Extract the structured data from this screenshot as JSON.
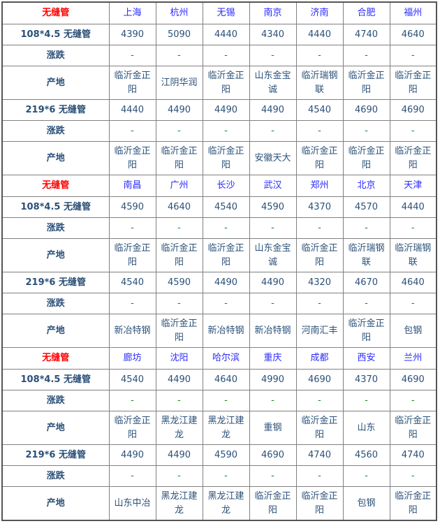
{
  "colors": {
    "title": "#ff0000",
    "city": "#2a2aff",
    "text": "#2b5078",
    "change": "#1a8a1a"
  },
  "labels": {
    "product": "无缝管",
    "change": "涨跌",
    "origin": "产地"
  },
  "blocks": [
    {
      "cities": [
        "上海",
        "杭州",
        "无锡",
        "南京",
        "济南",
        "合肥",
        "福州"
      ],
      "specs": [
        {
          "name": "108*4.5 无缝管",
          "prices": [
            "4390",
            "5090",
            "4440",
            "4340",
            "4440",
            "4740",
            "4640"
          ],
          "changes": [
            "-",
            "-",
            "-",
            "-",
            "-",
            "-",
            "-"
          ],
          "origins": [
            "临沂金正阳",
            "江阴华润",
            "临沂金正阳",
            "山东金宝诚",
            "临沂瑞钢联",
            "临沂金正阳",
            "临沂金正阳"
          ]
        },
        {
          "name": "219*6 无缝管",
          "prices": [
            "4440",
            "4490",
            "4490",
            "4490",
            "4540",
            "4690",
            "4690"
          ],
          "changes": [
            "-",
            "-",
            "-",
            "-",
            "-",
            "-",
            "-"
          ],
          "origins": [
            "临沂金正阳",
            "临沂金正阳",
            "临沂金正阳",
            "安徽天大",
            "临沂金正阳",
            "临沂金正阳",
            "临沂金正阳"
          ]
        }
      ]
    },
    {
      "cities": [
        "南昌",
        "广州",
        "长沙",
        "武汉",
        "郑州",
        "北京",
        "天津"
      ],
      "specs": [
        {
          "name": "108*4.5 无缝管",
          "prices": [
            "4590",
            "4640",
            "4540",
            "4590",
            "4370",
            "4570",
            "4440"
          ],
          "changes": [
            "-",
            "-",
            "-",
            "-",
            "-",
            "-",
            "-"
          ],
          "origins": [
            "临沂金正阳",
            "临沂金正阳",
            "临沂金正阳",
            "山东金宝诚",
            "临沂金正阳",
            "临沂瑞钢联",
            "临沂瑞钢联"
          ]
        },
        {
          "name": "219*6 无缝管",
          "prices": [
            "4540",
            "4590",
            "4490",
            "4490",
            "4320",
            "4670",
            "4640"
          ],
          "changes": [
            "-",
            "-",
            "-",
            "-",
            "-",
            "-",
            "-"
          ],
          "origins": [
            "新冶特钢",
            "临沂金正阳",
            "新冶特钢",
            "新冶特钢",
            "河南汇丰",
            "临沂金正阳",
            "包钢"
          ]
        }
      ]
    },
    {
      "cities": [
        "廊坊",
        "沈阳",
        "哈尔滨",
        "重庆",
        "成都",
        "西安",
        "兰州"
      ],
      "specs": [
        {
          "name": "108*4.5 无缝管",
          "prices": [
            "4540",
            "4490",
            "4640",
            "4990",
            "4690",
            "4370",
            "4690"
          ],
          "changes": [
            "-",
            "-",
            "-",
            "-",
            "-",
            "-",
            "-"
          ],
          "origins": [
            "临沂金正阳",
            "黑龙江建龙",
            "黑龙江建龙",
            "重钢",
            "临沂金正阳",
            "山东",
            "临沂金正阳"
          ]
        },
        {
          "name": "219*6 无缝管",
          "prices": [
            "4490",
            "4490",
            "4590",
            "4690",
            "4740",
            "4560",
            "4740"
          ],
          "changes": [
            "-",
            "-",
            "-",
            "-",
            "-",
            "-",
            "-"
          ],
          "origins": [
            "山东中冶",
            "黑龙江建龙",
            "黑龙江建龙",
            "临沂金正阳",
            "临沂金正阳",
            "包钢",
            "临沂金正阳"
          ]
        }
      ]
    }
  ]
}
